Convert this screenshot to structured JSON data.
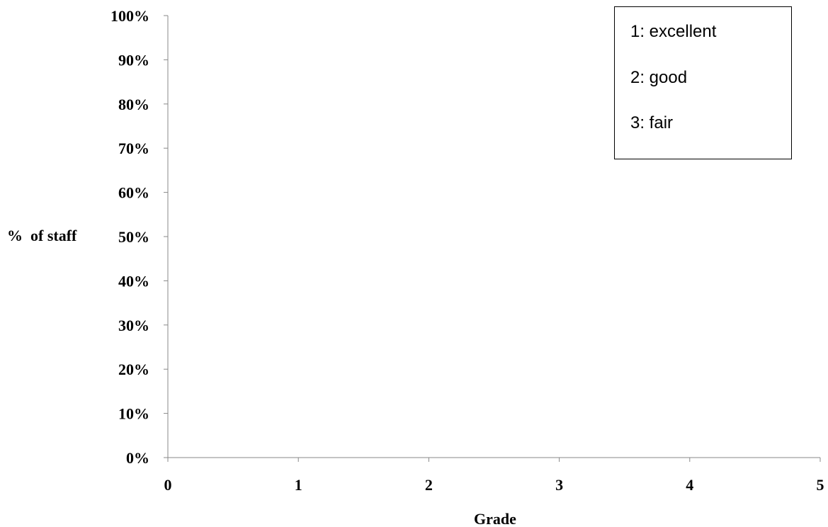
{
  "chart_data": {
    "type": "scatter",
    "title": "",
    "xlabel": "Grade",
    "ylabel": "%  of staff",
    "xlim": [
      0,
      5
    ],
    "ylim": [
      0,
      100
    ],
    "x_ticks": [
      "0",
      "1",
      "2",
      "3",
      "4",
      "5"
    ],
    "y_ticks": [
      "0%",
      "10%",
      "20%",
      "30%",
      "40%",
      "50%",
      "60%",
      "70%",
      "80%",
      "90%",
      "100%"
    ],
    "grid": false,
    "series": [],
    "legend_position": "top-right",
    "legend": [
      "1: excellent",
      "2: good",
      "3: fair"
    ]
  }
}
